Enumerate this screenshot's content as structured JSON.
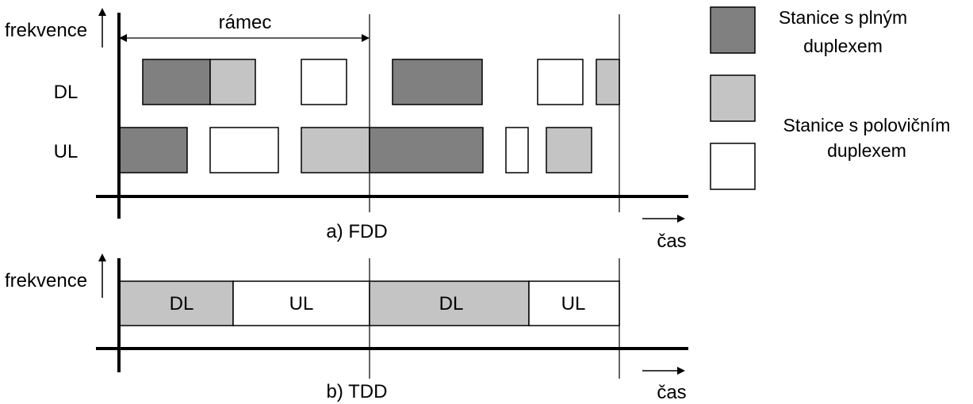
{
  "colors": {
    "full_duplex": "#808080",
    "half_duplex": "#c4c4c4",
    "empty": "#ffffff"
  },
  "fdd": {
    "axis_label": "frekvence",
    "frame_label": "rámec",
    "dl_label": "DL",
    "ul_label": "UL",
    "caption": "a) FDD",
    "time_label": "čas"
  },
  "tdd": {
    "axis_label": "frekvence",
    "caption": "b) TDD",
    "time_label": "čas",
    "slots": [
      "DL",
      "UL",
      "DL",
      "UL"
    ]
  },
  "legend": {
    "full_duplex": [
      "Stanice s plným",
      "duplexem"
    ],
    "half_duplex": [
      "Stanice s polovičním",
      "duplexem"
    ]
  }
}
